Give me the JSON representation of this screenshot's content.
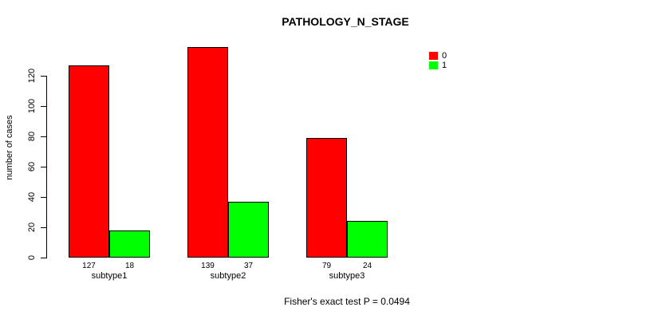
{
  "title": "PATHOLOGY_N_STAGE",
  "footnote": "Fisher's exact test P = 0.0494",
  "y_axis": {
    "label": "number of cases"
  },
  "legend": {
    "items": [
      {
        "label": "0",
        "color": "#ff0000"
      },
      {
        "label": "1",
        "color": "#00ff00"
      }
    ]
  },
  "chart_data": {
    "type": "bar",
    "title": "PATHOLOGY_N_STAGE",
    "categories": [
      "subtype1",
      "subtype2",
      "subtype3"
    ],
    "series": [
      {
        "name": "0",
        "color": "#ff0000",
        "values": [
          127,
          139,
          79
        ]
      },
      {
        "name": "1",
        "color": "#00ff00",
        "values": [
          18,
          37,
          24
        ]
      }
    ],
    "bar_value_labels": [
      [
        127,
        18
      ],
      [
        139,
        37
      ],
      [
        79,
        24
      ]
    ],
    "xlabel": "",
    "ylabel": "number of cases",
    "ylim": [
      0,
      120
    ],
    "yticks": [
      0,
      20,
      40,
      60,
      80,
      100,
      120
    ],
    "grid": false,
    "legend_position": "top-right",
    "annotation": "Fisher's exact test P = 0.0494"
  }
}
